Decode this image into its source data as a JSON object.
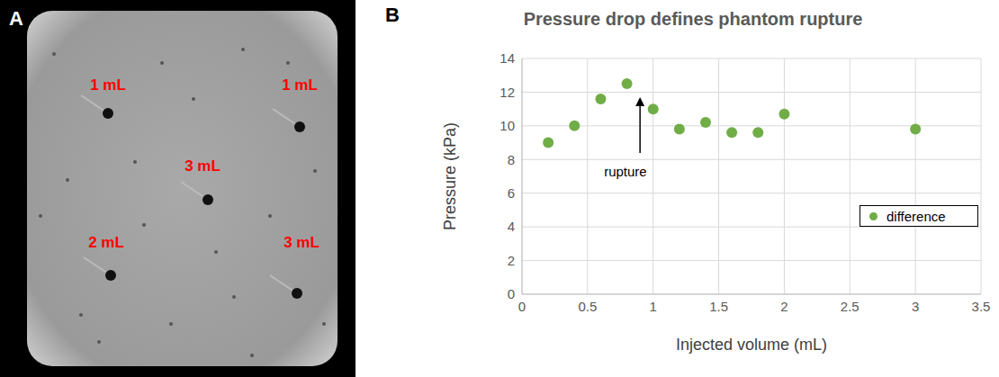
{
  "image": {
    "letter": "A",
    "labels": [
      "1 mL",
      "1 mL",
      "3 mL",
      "2 mL",
      "3 mL"
    ]
  },
  "chart_data": {
    "letter": "B",
    "type": "scatter",
    "title": "Pressure drop defines phantom rupture",
    "x_label": "Injected volume (mL)",
    "y_label": "Pressure (kPa)",
    "x": [
      0.2,
      0.4,
      0.6,
      0.8,
      1.0,
      1.2,
      1.4,
      1.6,
      1.8,
      2.0,
      3.0
    ],
    "series": [
      {
        "name": "difference",
        "color": "#70ad47",
        "marker": "circle",
        "values": [
          9.0,
          10.0,
          11.6,
          12.5,
          11.0,
          9.8,
          10.2,
          9.6,
          9.6,
          10.7,
          9.8
        ]
      }
    ],
    "xlim": [
      0,
      3.5
    ],
    "xticks": [
      0,
      0.5,
      1,
      1.5,
      2,
      2.5,
      3,
      3.5
    ],
    "ylim": [
      0,
      14
    ],
    "yticks": [
      0,
      2,
      4,
      6,
      8,
      10,
      12,
      14
    ],
    "grid": true,
    "legend": "right",
    "annotations": [
      {
        "text": "rupture",
        "x": 0.9,
        "y": 11.7
      }
    ]
  }
}
